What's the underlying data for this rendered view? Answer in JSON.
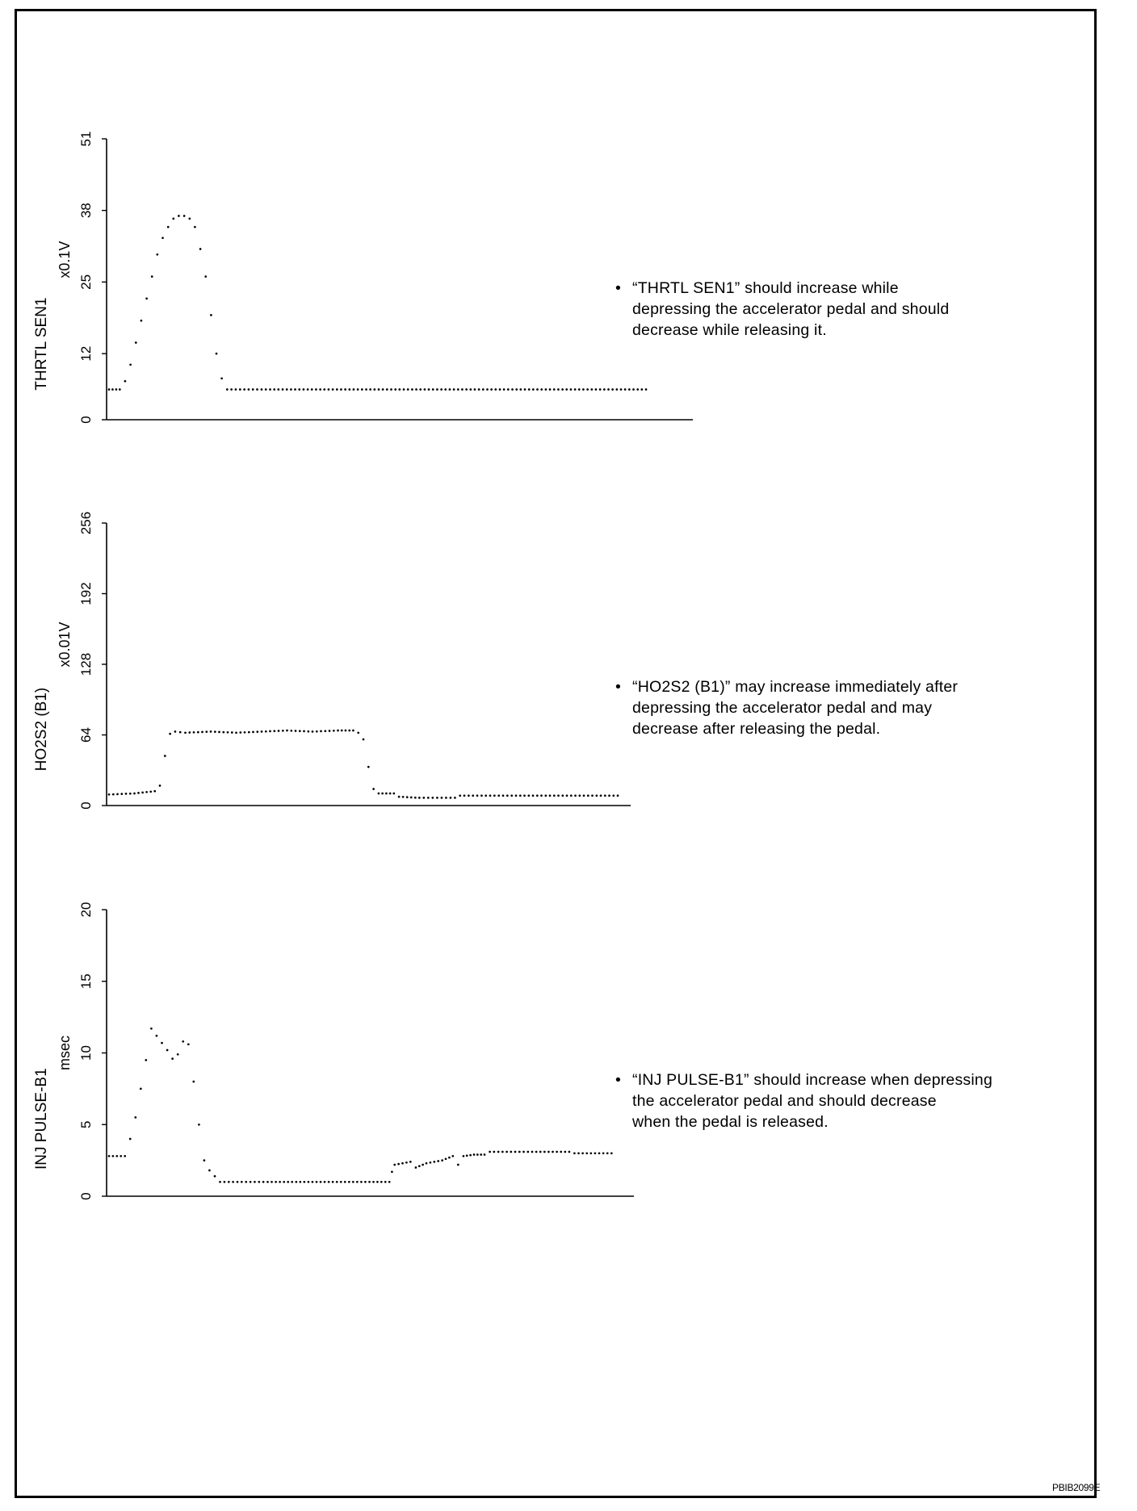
{
  "figure_id": "PBIB2099E",
  "notes": [
    {
      "bullet": "•",
      "lines": [
        "“THRTL SEN1” should increase while",
        "depressing the accelerator pedal and should",
        "decrease while releasing it."
      ]
    },
    {
      "bullet": "•",
      "lines": [
        "“HO2S2 (B1)” may increase immediately after",
        "depressing the accelerator pedal and may",
        "decrease after releasing the pedal."
      ]
    },
    {
      "bullet": "•",
      "lines": [
        "“INJ PULSE-B1” should increase when depressing",
        "the accelerator pedal and should decrease",
        "when the pedal is released."
      ]
    }
  ],
  "colors": {
    "line": "#000000",
    "background": "#ffffff"
  },
  "chart_data": [
    {
      "type": "scatter",
      "ylabel": "THRTL SEN1",
      "unit": "x0.1V",
      "ylim": [
        0,
        51
      ],
      "yticks": [
        "0",
        "12",
        "25",
        "38",
        "51"
      ],
      "ytick_values": [
        0,
        12,
        25,
        38,
        51
      ],
      "grid": false,
      "points": [
        [
          0,
          5.5
        ],
        [
          2,
          5.5
        ],
        [
          3,
          7
        ],
        [
          4,
          10
        ],
        [
          5,
          14
        ],
        [
          6,
          18
        ],
        [
          7,
          22
        ],
        [
          8,
          26
        ],
        [
          9,
          30
        ],
        [
          10,
          33
        ],
        [
          11,
          35
        ],
        [
          12,
          36.5
        ],
        [
          13,
          37
        ],
        [
          14,
          37
        ],
        [
          15,
          36.5
        ],
        [
          16,
          35
        ],
        [
          17,
          31
        ],
        [
          18,
          26
        ],
        [
          19,
          19
        ],
        [
          20,
          12
        ],
        [
          21,
          7.5
        ],
        [
          22,
          5.5
        ],
        [
          30,
          5.5
        ],
        [
          100,
          5.5
        ]
      ]
    },
    {
      "type": "scatter",
      "ylabel": "HO2S2 (B1)",
      "unit": "x0.01V",
      "ylim": [
        0,
        256
      ],
      "yticks": [
        "0",
        "64",
        "128",
        "192",
        "256"
      ],
      "ytick_values": [
        0,
        64,
        128,
        192,
        256
      ],
      "grid": false,
      "points": [
        [
          0,
          10
        ],
        [
          5,
          11
        ],
        [
          9,
          13
        ],
        [
          10,
          18
        ],
        [
          11,
          45
        ],
        [
          12,
          65
        ],
        [
          13,
          67
        ],
        [
          15,
          66
        ],
        [
          20,
          67
        ],
        [
          25,
          66
        ],
        [
          30,
          67
        ],
        [
          35,
          68
        ],
        [
          40,
          67
        ],
        [
          45,
          68
        ],
        [
          48,
          68
        ],
        [
          49,
          66
        ],
        [
          50,
          60
        ],
        [
          51,
          35
        ],
        [
          52,
          15
        ],
        [
          53,
          11
        ],
        [
          56,
          11
        ],
        [
          57,
          8
        ],
        [
          61,
          7
        ],
        [
          68,
          7
        ],
        [
          69,
          9
        ],
        [
          80,
          9
        ],
        [
          100,
          9
        ]
      ]
    },
    {
      "type": "scatter",
      "ylabel": "INJ PULSE-B1",
      "unit": "msec",
      "ylim": [
        0,
        20
      ],
      "yticks": [
        "0",
        "5",
        "10",
        "15",
        "20"
      ],
      "ytick_values": [
        0,
        5,
        10,
        15,
        20
      ],
      "grid": false,
      "points": [
        [
          0,
          2.8
        ],
        [
          3,
          2.8
        ],
        [
          4,
          4
        ],
        [
          5,
          5.5
        ],
        [
          6,
          7.5
        ],
        [
          7,
          9.5
        ],
        [
          8,
          11.7
        ],
        [
          9,
          11.2
        ],
        [
          10,
          10.7
        ],
        [
          11,
          10.2
        ],
        [
          12,
          9.6
        ],
        [
          13,
          9.9
        ],
        [
          14,
          10.8
        ],
        [
          15,
          10.6
        ],
        [
          16,
          8
        ],
        [
          17,
          5
        ],
        [
          18,
          2.5
        ],
        [
          19,
          1.8
        ],
        [
          20,
          1.4
        ],
        [
          21,
          1
        ],
        [
          30,
          1
        ],
        [
          40,
          1
        ],
        [
          50,
          1
        ],
        [
          53,
          1
        ],
        [
          53.5,
          1.7
        ],
        [
          54,
          2.2
        ],
        [
          57,
          2.4
        ],
        [
          58,
          2.0
        ],
        [
          60,
          2.3
        ],
        [
          63,
          2.5
        ],
        [
          65,
          2.8
        ],
        [
          66,
          2.2
        ],
        [
          67,
          2.8
        ],
        [
          69,
          2.9
        ],
        [
          71,
          2.9
        ],
        [
          72,
          3.1
        ],
        [
          80,
          3.1
        ],
        [
          87,
          3.1
        ],
        [
          88,
          3
        ],
        [
          95,
          3
        ]
      ]
    }
  ]
}
